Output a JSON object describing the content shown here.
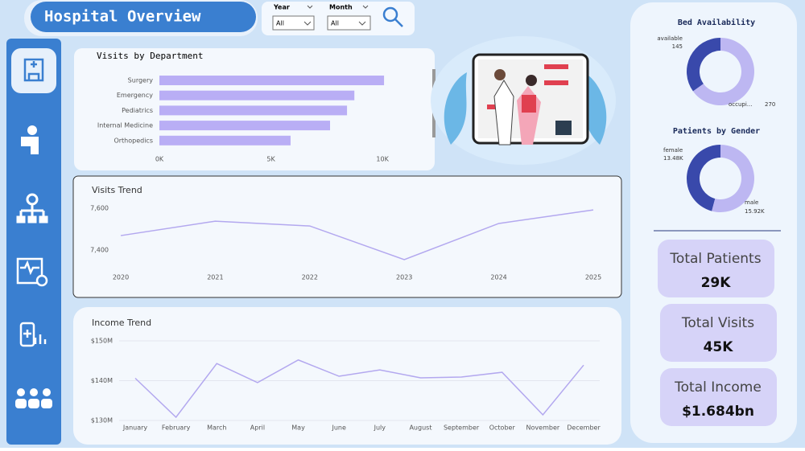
{
  "header": {
    "title": "Hospital Overview"
  },
  "filters": [
    {
      "label": "Year",
      "value": "All"
    },
    {
      "label": "Month",
      "value": "All"
    }
  ],
  "chart_data": [
    {
      "type": "bar",
      "orientation": "horizontal",
      "title": "Visits by Department",
      "categories": [
        "Surgery",
        "Emergency",
        "Pediatrics",
        "Internal Medicine",
        "Orthopedics"
      ],
      "values": [
        10070,
        8740,
        8410,
        7650,
        5880
      ],
      "color": "#b9aef5",
      "xlim": [
        0,
        10500
      ],
      "xticks": [
        {
          "value": 0,
          "label": "0K"
        },
        {
          "value": 5000,
          "label": "5K"
        },
        {
          "value": 10000,
          "label": "10K"
        }
      ]
    },
    {
      "type": "line",
      "title": "Visits Trend",
      "categories": [
        "2020",
        "2021",
        "2022",
        "2023",
        "2024",
        "2025"
      ],
      "values": [
        7469,
        7538,
        7515,
        7354,
        7527,
        7592
      ],
      "color": "#b3a8ef",
      "ylim": [
        7330,
        7640
      ],
      "yticks": [
        {
          "value": 7400,
          "label": "7,400"
        },
        {
          "value": 7600,
          "label": "7,600"
        }
      ],
      "grid": false
    },
    {
      "type": "line",
      "title": "Income Trend",
      "categories": [
        "January",
        "February",
        "March",
        "April",
        "May",
        "June",
        "July",
        "August",
        "September",
        "October",
        "November",
        "December"
      ],
      "values": [
        140600000,
        130800000,
        144300000,
        139500000,
        145200000,
        141100000,
        142700000,
        140700000,
        140900000,
        142100000,
        131400000,
        143900000
      ],
      "color": "#b3a8ef",
      "ylim": [
        129000000,
        152000000
      ],
      "yticks": [
        {
          "value": 130000000,
          "label": "$130M"
        },
        {
          "value": 140000000,
          "label": "$140M"
        },
        {
          "value": 150000000,
          "label": "$150M"
        }
      ],
      "grid": true
    },
    {
      "type": "donut",
      "title": "Bed Availability",
      "categories": [
        "available",
        "occupi..."
      ],
      "values": [
        145,
        270
      ],
      "colors": [
        "#3949ab",
        "#bdb7f2"
      ]
    },
    {
      "type": "donut",
      "title": "Patients by Gender",
      "categories": [
        "female",
        "male"
      ],
      "values": [
        13480,
        15920
      ],
      "value_labels": [
        "13.48K",
        "15.92K"
      ],
      "colors": [
        "#3949ab",
        "#bdb7f2"
      ]
    }
  ],
  "kpis": [
    {
      "label": "Total Patients",
      "value": "29K"
    },
    {
      "label": "Total Visits",
      "value": "45K"
    },
    {
      "label": "Total Income",
      "value": "$1.684bn"
    }
  ]
}
